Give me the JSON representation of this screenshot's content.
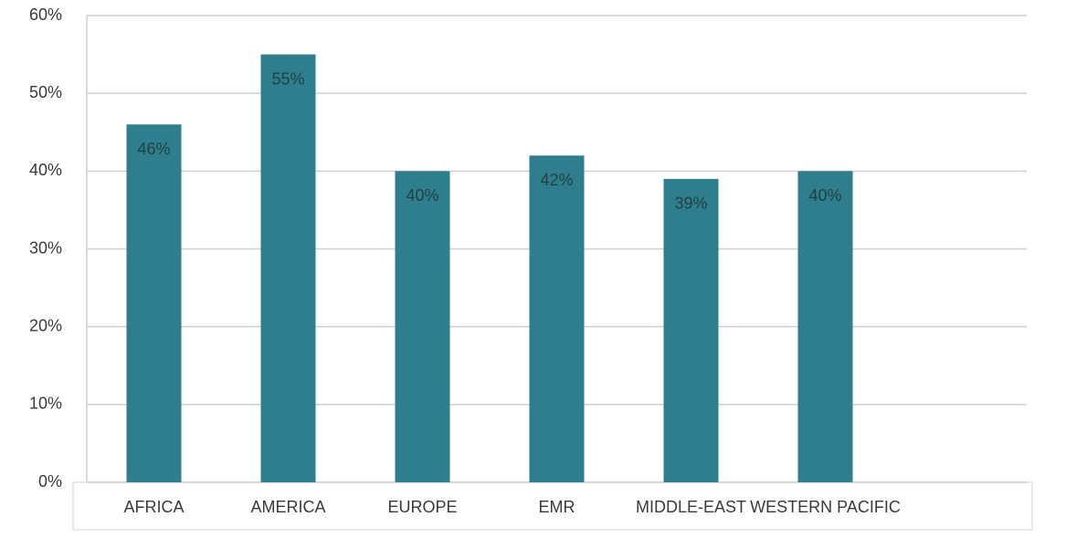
{
  "chart_data": {
    "type": "bar",
    "categories": [
      "AFRICA",
      "AMERICA",
      "EUROPE",
      "EMR",
      "MIDDLE-EAST",
      "WESTERN PACIFIC"
    ],
    "values": [
      46,
      55,
      40,
      42,
      39,
      40
    ],
    "value_labels": [
      "46%",
      "55%",
      "40%",
      "42%",
      "39%",
      "40%"
    ],
    "color": "#2f7e8e",
    "ylim": [
      0,
      60
    ],
    "yticks": [
      {
        "value": 0,
        "label": "0%"
      },
      {
        "value": 10,
        "label": "10%"
      },
      {
        "value": 20,
        "label": "20%"
      },
      {
        "value": 30,
        "label": "30%"
      },
      {
        "value": 40,
        "label": "40%"
      },
      {
        "value": 50,
        "label": "50%"
      },
      {
        "value": 60,
        "label": "60%"
      }
    ],
    "grid": true
  }
}
